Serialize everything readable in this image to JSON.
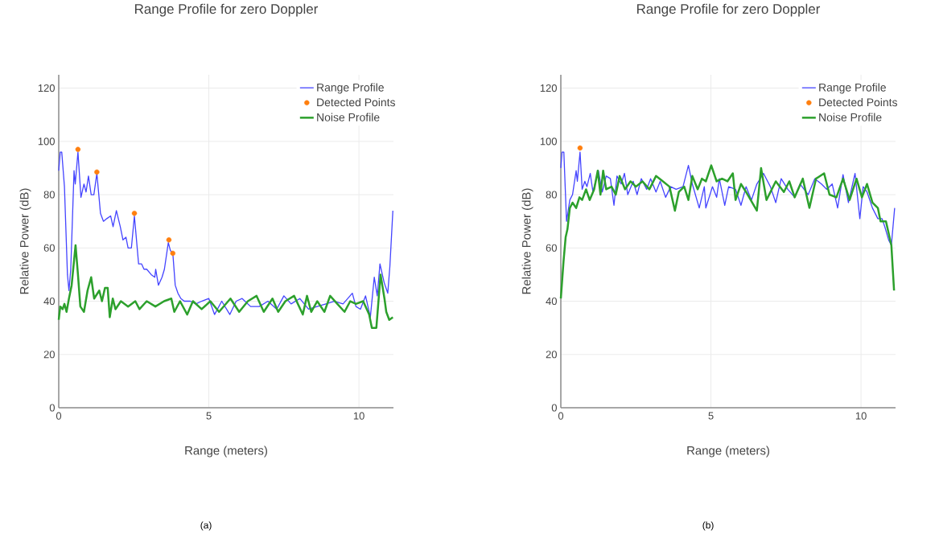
{
  "chart_data": [
    {
      "type": "line",
      "title": "Range Profile for zero Doppler",
      "xlabel": "Range (meters)",
      "ylabel": "Relative Power (dB)",
      "annotations": [
        "(a)"
      ],
      "xlim": [
        0,
        11.15
      ],
      "ylim": [
        0,
        125
      ],
      "xticks": [
        0,
        5,
        10
      ],
      "yticks": [
        0,
        20,
        40,
        60,
        80,
        100,
        120
      ],
      "grid": true,
      "legend": "top right",
      "series": [
        {
          "name": "Range Profile",
          "color": "#4444ff",
          "x": [
            0,
            0.05,
            0.1,
            0.19,
            0.29,
            0.34,
            0.4,
            0.51,
            0.55,
            0.64,
            0.74,
            0.84,
            0.91,
            0.99,
            1.08,
            1.17,
            1.27,
            1.39,
            1.49,
            1.6,
            1.73,
            1.81,
            1.92,
            2.05,
            2.14,
            2.24,
            2.31,
            2.42,
            2.52,
            2.66,
            2.76,
            2.84,
            2.93,
            3.08,
            3.2,
            3.23,
            3.32,
            3.44,
            3.52,
            3.65,
            3.72,
            3.8,
            3.88,
            3.97,
            4.07,
            4.18,
            4.38,
            4.57,
            4.76,
            5.0,
            5.19,
            5.43,
            5.7,
            5.91,
            6.11,
            6.39,
            6.68,
            6.97,
            7.26,
            7.5,
            7.74,
            8.03,
            8.32,
            8.61,
            8.9,
            9.18,
            9.47,
            9.78,
            9.9,
            10.05,
            10.22,
            10.38,
            10.51,
            10.61,
            10.7,
            10.84,
            10.96,
            11.03,
            11.13
          ],
          "values": [
            89,
            96,
            96,
            83,
            50,
            44,
            52,
            89,
            84,
            96,
            79,
            84,
            81,
            87,
            80,
            80,
            88,
            73,
            70,
            71,
            72,
            68,
            74,
            68,
            63,
            64,
            60,
            60,
            72,
            54,
            54,
            52,
            52,
            50,
            49,
            52,
            46,
            49,
            52,
            62,
            59,
            58,
            46,
            43,
            41,
            40,
            40,
            39,
            40,
            41,
            35,
            40,
            35,
            40,
            41,
            38,
            38,
            40,
            37,
            42,
            39,
            41,
            37,
            38,
            39,
            40,
            39,
            43,
            38,
            37,
            42,
            34,
            49,
            42,
            54,
            47,
            43,
            53,
            74
          ]
        },
        {
          "name": "Detected Points",
          "type": "scatter",
          "marker": "circle",
          "color": "#ff7f0e",
          "x": [
            0.64,
            1.27,
            2.52,
            3.67,
            3.8
          ],
          "values": [
            97,
            88.5,
            73,
            63,
            58
          ]
        },
        {
          "name": "Noise Profile",
          "color": "#2ca02c",
          "x": [
            0,
            0.05,
            0.13,
            0.19,
            0.26,
            0.34,
            0.43,
            0.56,
            0.64,
            0.72,
            0.84,
            0.96,
            1.08,
            1.18,
            1.35,
            1.44,
            1.54,
            1.63,
            1.7,
            1.8,
            1.89,
            2.07,
            2.31,
            2.55,
            2.69,
            2.93,
            3.22,
            3.51,
            3.75,
            3.85,
            4.04,
            4.28,
            4.47,
            4.76,
            5.05,
            5.34,
            5.72,
            6.01,
            6.3,
            6.59,
            6.83,
            7.12,
            7.31,
            7.55,
            7.84,
            8.13,
            8.27,
            8.41,
            8.61,
            8.85,
            9.04,
            9.28,
            9.52,
            9.71,
            9.9,
            10.14,
            10.34,
            10.43,
            10.58,
            10.72,
            10.85,
            10.91,
            11.01,
            11.13
          ],
          "values": [
            33,
            38,
            37,
            39,
            36,
            41,
            46,
            61,
            50,
            38,
            36,
            44,
            49,
            41,
            44,
            40,
            45,
            45,
            34,
            41,
            37,
            40,
            38,
            40,
            37,
            40,
            38,
            40,
            41,
            36,
            40,
            35,
            40,
            37,
            40,
            36,
            41,
            36,
            40,
            42,
            36,
            41,
            36,
            40,
            42,
            35,
            42,
            36,
            40,
            36,
            42,
            39,
            36,
            40,
            39,
            40,
            35,
            30,
            30,
            50,
            41,
            36,
            33,
            34
          ]
        }
      ]
    },
    {
      "type": "line",
      "title": "Range Profile for zero Doppler",
      "xlabel": "Range (meters)",
      "ylabel": "Relative Power (dB)",
      "annotations": [
        "(b)"
      ],
      "xlim": [
        0,
        11.15
      ],
      "ylim": [
        0,
        125
      ],
      "xticks": [
        0,
        5,
        10
      ],
      "yticks": [
        0,
        20,
        40,
        60,
        80,
        100,
        120
      ],
      "grid": true,
      "legend": "top right",
      "series": [
        {
          "name": "Range Profile",
          "color": "#4444ff",
          "x": [
            0,
            0.04,
            0.1,
            0.19,
            0.3,
            0.39,
            0.51,
            0.55,
            0.64,
            0.71,
            0.8,
            0.87,
            0.98,
            1.07,
            1.25,
            1.38,
            1.51,
            1.65,
            1.77,
            1.87,
            2.01,
            2.12,
            2.23,
            2.41,
            2.54,
            2.68,
            2.86,
            2.99,
            3.17,
            3.31,
            3.49,
            3.66,
            3.84,
            4.07,
            4.25,
            4.38,
            4.61,
            4.78,
            4.83,
            5.05,
            5.19,
            5.28,
            5.46,
            5.59,
            5.82,
            6.0,
            6.17,
            6.35,
            6.53,
            6.75,
            6.98,
            7.16,
            7.34,
            7.56,
            7.79,
            7.97,
            8.24,
            8.46,
            8.68,
            8.86,
            9.04,
            9.22,
            9.4,
            9.58,
            9.8,
            9.96,
            10.07,
            10.2,
            10.38,
            10.56,
            10.7,
            10.79,
            10.92,
            11.01,
            11.12
          ],
          "values": [
            90,
            96,
            96,
            70,
            78,
            80,
            89,
            85,
            96,
            82,
            85,
            83,
            88,
            81,
            89,
            81,
            87,
            86,
            76,
            87,
            84,
            88,
            80,
            85,
            80,
            86,
            82,
            86,
            81,
            85,
            79,
            83,
            82,
            83,
            91,
            84,
            75,
            83,
            75,
            83,
            79,
            86,
            76,
            83,
            82,
            76,
            83,
            78,
            84,
            88,
            83,
            77,
            86,
            82,
            79,
            84,
            80,
            86,
            84,
            82,
            84,
            75,
            87.5,
            77,
            88,
            71,
            83,
            81,
            75,
            71,
            71,
            68,
            63,
            61,
            75
          ]
        },
        {
          "name": "Detected Points",
          "type": "scatter",
          "marker": "circle",
          "color": "#ff7f0e",
          "x": [
            0.64
          ],
          "values": [
            97.5
          ]
        },
        {
          "name": "Noise Profile",
          "color": "#2ca02c",
          "x": [
            0,
            0.09,
            0.16,
            0.22,
            0.3,
            0.39,
            0.51,
            0.62,
            0.71,
            0.84,
            0.96,
            1.11,
            1.23,
            1.32,
            1.41,
            1.51,
            1.69,
            1.83,
            1.96,
            2.14,
            2.32,
            2.5,
            2.72,
            2.95,
            3.17,
            3.4,
            3.62,
            3.8,
            3.93,
            4.11,
            4.25,
            4.38,
            4.56,
            4.7,
            4.83,
            5.01,
            5.19,
            5.37,
            5.55,
            5.73,
            5.82,
            6.0,
            6.17,
            6.53,
            6.67,
            6.85,
            7.16,
            7.43,
            7.61,
            7.79,
            8.06,
            8.28,
            8.5,
            8.77,
            8.95,
            9.18,
            9.4,
            9.62,
            9.85,
            10.03,
            10.2,
            10.38,
            10.56,
            10.65,
            10.83,
            11.01,
            11.1
          ],
          "values": [
            41,
            55,
            64,
            67,
            75,
            77,
            75,
            79,
            78,
            82,
            78,
            82,
            89,
            80,
            89,
            82,
            83,
            80,
            87,
            82,
            85,
            83,
            85,
            82,
            87,
            85,
            83,
            74,
            81,
            83,
            78,
            87,
            82,
            86,
            85,
            91,
            85,
            86,
            85,
            88,
            78,
            84,
            81,
            74,
            90,
            78,
            85,
            81,
            85,
            79,
            86,
            75,
            86,
            88,
            80,
            79,
            86,
            78,
            86,
            79,
            84,
            77,
            75,
            70,
            70,
            61,
            44
          ]
        }
      ]
    }
  ]
}
